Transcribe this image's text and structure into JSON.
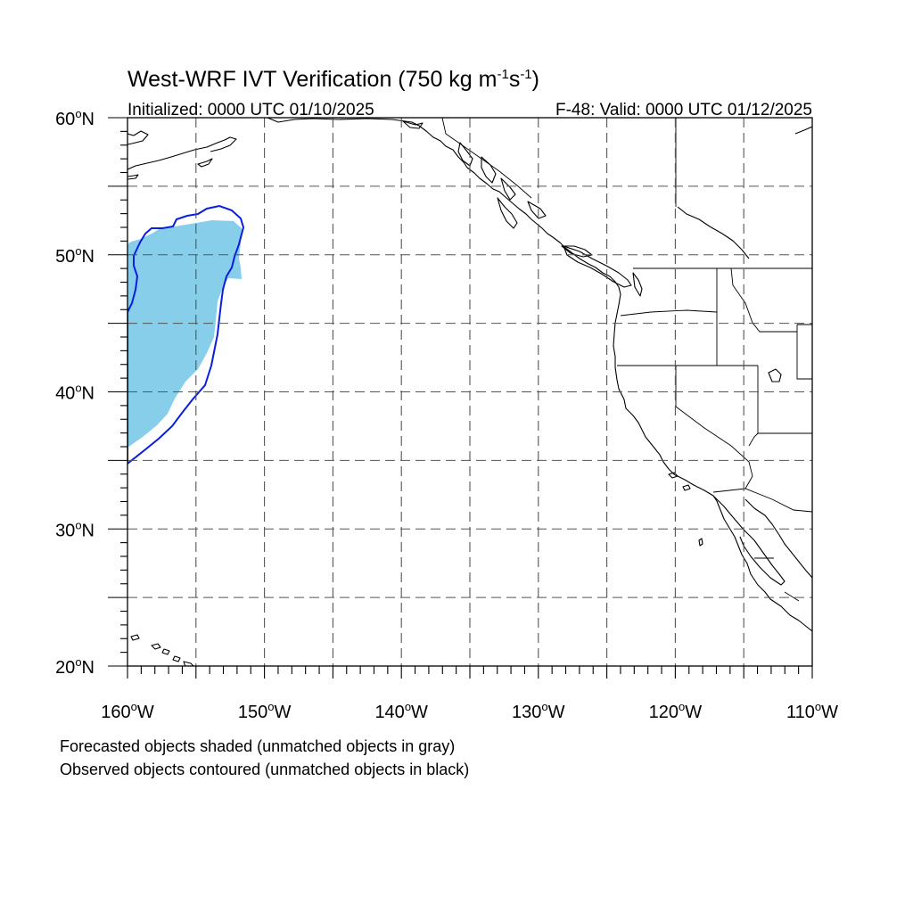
{
  "title": {
    "main": "West-WRF IVT Verification (750 kg m",
    "sup1": "-1",
    "mid": "s",
    "sup2": "-1",
    "close": ")"
  },
  "subtitle": {
    "left": "Initialized: 0000 UTC 01/10/2025",
    "right": "F-48: Valid: 0000 UTC 01/12/2025"
  },
  "axes": {
    "lon_range": [
      -160,
      -110
    ],
    "lat_range": [
      20,
      60
    ],
    "lon_labels": [
      {
        "value": -160,
        "deg": "160",
        "suffix": "W"
      },
      {
        "value": -150,
        "deg": "150",
        "suffix": "W"
      },
      {
        "value": -140,
        "deg": "140",
        "suffix": "W"
      },
      {
        "value": -130,
        "deg": "130",
        "suffix": "W"
      },
      {
        "value": -120,
        "deg": "120",
        "suffix": "W"
      },
      {
        "value": -110,
        "deg": "110",
        "suffix": "W"
      }
    ],
    "lat_labels": [
      {
        "value": 60,
        "deg": "60",
        "suffix": "N"
      },
      {
        "value": 50,
        "deg": "50",
        "suffix": "N"
      },
      {
        "value": 40,
        "deg": "40",
        "suffix": "N"
      },
      {
        "value": 30,
        "deg": "30",
        "suffix": "N"
      },
      {
        "value": 20,
        "deg": "20",
        "suffix": "N"
      }
    ],
    "grid_lon_step": 5,
    "grid_lat_step": 5,
    "grid_style": "dashed"
  },
  "objects": {
    "forecast_fill_color": "#87ceeb",
    "observed_contour_color": "#0a1ee0"
  },
  "footnotes": {
    "line1": "Forecasted objects shaded (unmatched objects in gray)",
    "line2": "Observed objects contoured (unmatched objects in black)"
  }
}
